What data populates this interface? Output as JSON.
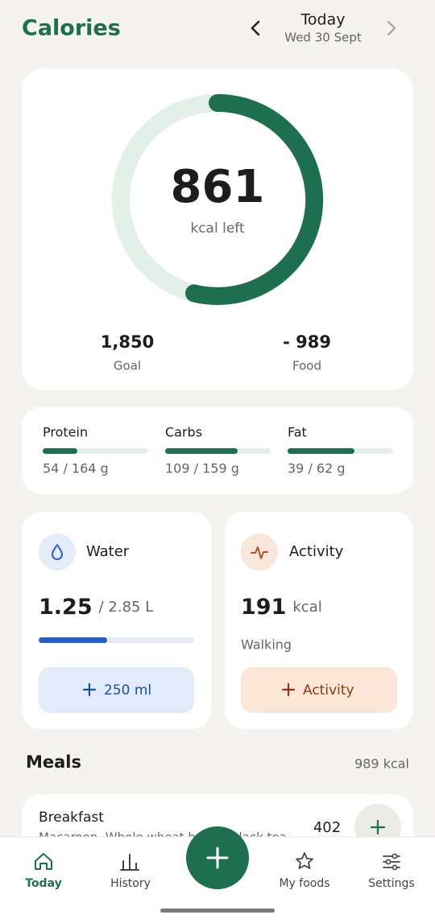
{
  "header": {
    "title": "Calories",
    "day": "Today",
    "date": "Wed 30 Sept"
  },
  "summary": {
    "remaining": "861",
    "remaining_label": "kcal left",
    "goal": "1,850",
    "goal_label": "Goal",
    "food": "- 989",
    "food_label": "Food"
  },
  "macros": [
    {
      "name": "Protein",
      "amount": "54 / 164 g"
    },
    {
      "name": "Carbs",
      "amount": "109 / 159 g"
    },
    {
      "name": "Fat",
      "amount": "39 / 62 g"
    }
  ],
  "water": {
    "title": "Water",
    "amount": "1.25",
    "goal": "/ 2.85 L",
    "button": "250 ml"
  },
  "activity": {
    "title": "Activity",
    "amount": "191",
    "unit": "kcal",
    "type": "Walking",
    "button": "Activity"
  },
  "meals": {
    "title": "Meals",
    "total": "989 kcal",
    "items": [
      {
        "name": "Breakfast",
        "foods": "Macaroon, Whole wheat bread, Black tea",
        "kcal": "402"
      }
    ]
  },
  "nav": [
    "Today",
    "History",
    "My foods",
    "Settings"
  ]
}
